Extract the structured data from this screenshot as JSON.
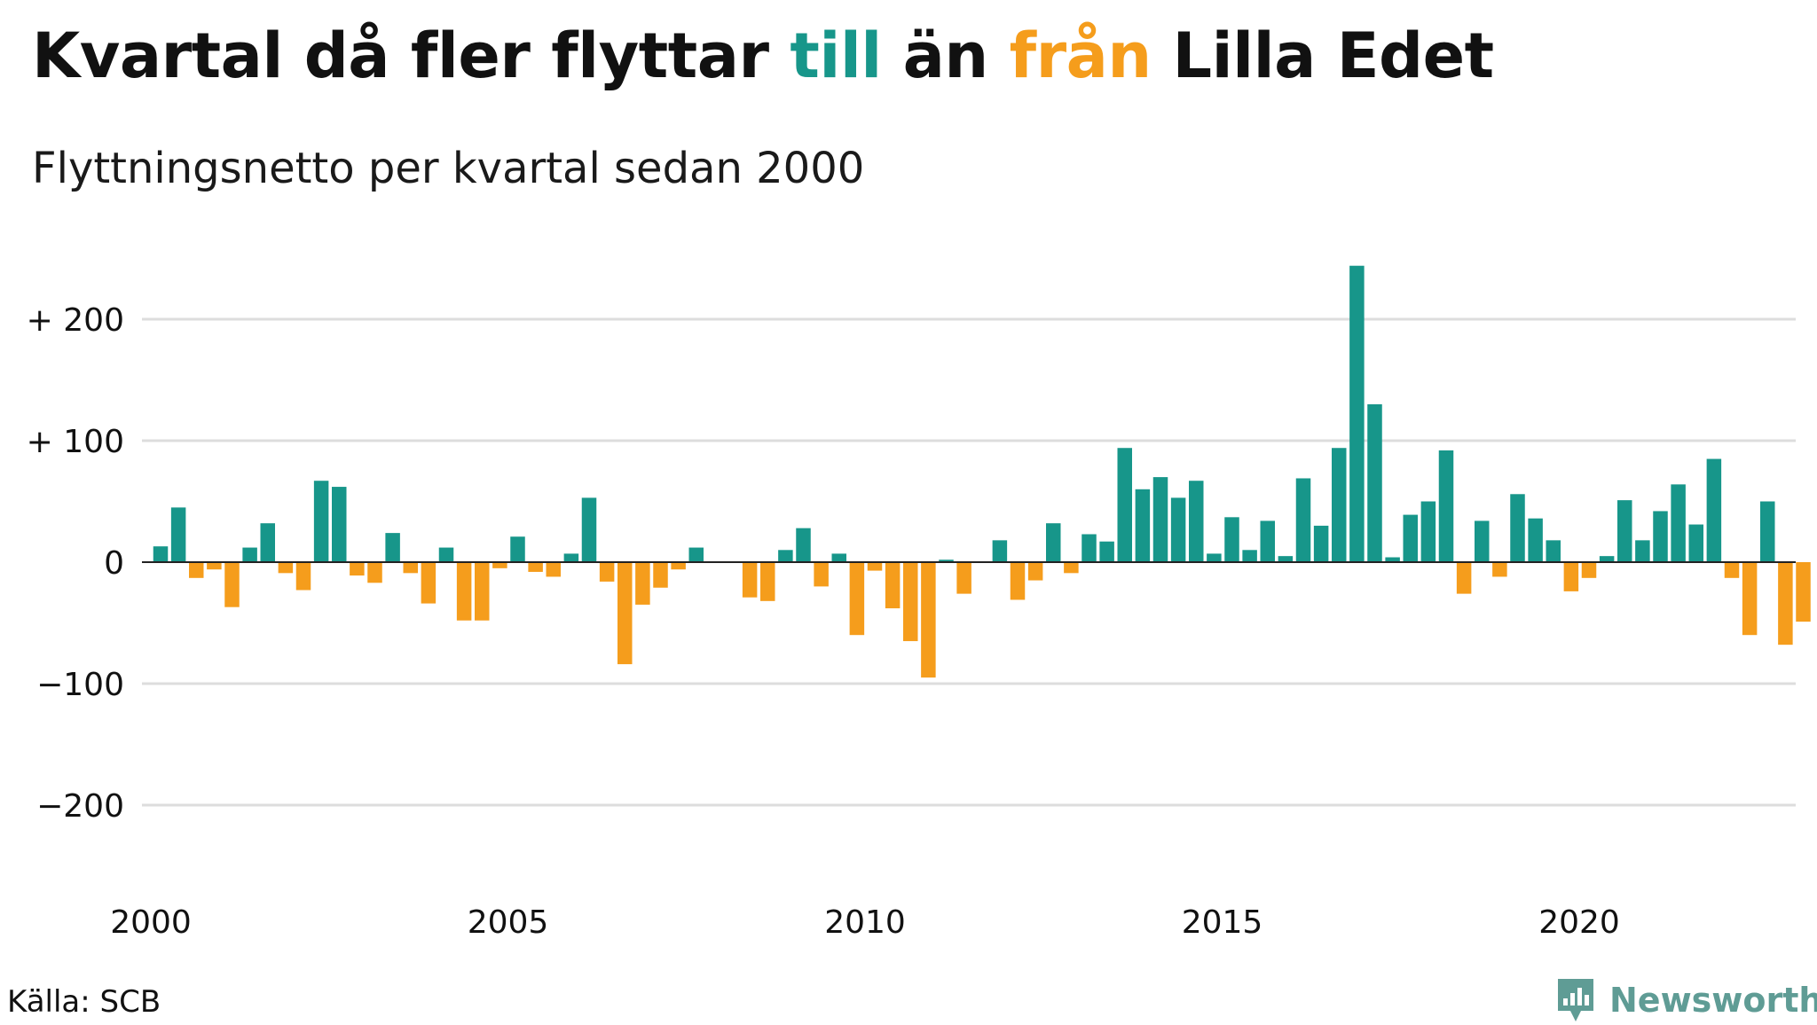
{
  "header": {
    "title_part1": "Kvartal då fler flyttar ",
    "title_till": "till",
    "title_part2": " än ",
    "title_fran": "från",
    "title_part3": " Lilla Edet",
    "subtitle": "Flyttningsnetto per kvartal sedan 2000"
  },
  "footer": {
    "source": "Källa: SCB",
    "brand": "Newsworthy"
  },
  "colors": {
    "positive": "#17968a",
    "negative": "#f59d1c",
    "grid": "#dddddd",
    "zero_line": "#222222",
    "brand": "#5f9c95"
  },
  "icons": {
    "brand_logo": "newsworthy-logo-icon"
  },
  "chart_data": {
    "type": "bar",
    "title": "Kvartal då fler flyttar till än från Lilla Edet",
    "subtitle": "Flyttningsnetto per kvartal sedan 2000",
    "xlabel": "",
    "ylabel": "",
    "ylim": [
      -270,
      250
    ],
    "y_ticks": [
      {
        "value": 200,
        "label": "+ 200"
      },
      {
        "value": 100,
        "label": "+ 100"
      },
      {
        "value": 0,
        "label": "0"
      },
      {
        "value": -100,
        "label": "−100"
      },
      {
        "value": -200,
        "label": "−200"
      }
    ],
    "x_ticks": [
      {
        "value": 2000,
        "label": "2000"
      },
      {
        "value": 2005,
        "label": "2005"
      },
      {
        "value": 2010,
        "label": "2010"
      },
      {
        "value": 2015,
        "label": "2015"
      },
      {
        "value": 2020,
        "label": "2020"
      }
    ],
    "grid": true,
    "legend": "none",
    "start_quarter": "2000 Q1",
    "frequency": "quarterly",
    "values": [
      13,
      45,
      -13,
      -6,
      -37,
      12,
      32,
      -9,
      -23,
      67,
      62,
      -11,
      -17,
      24,
      -9,
      -34,
      12,
      -48,
      -48,
      -5,
      21,
      -8,
      -12,
      7,
      53,
      -16,
      -84,
      -35,
      -21,
      -6,
      12,
      0,
      0,
      -29,
      -32,
      10,
      28,
      -20,
      7,
      -60,
      -7,
      -38,
      -65,
      -95,
      2,
      -26,
      0,
      18,
      -31,
      -15,
      32,
      -9,
      23,
      17,
      94,
      60,
      70,
      53,
      67,
      7,
      37,
      10,
      34,
      5,
      69,
      30,
      94,
      244,
      130,
      4,
      39,
      50,
      92,
      -26,
      34,
      -12,
      56,
      36,
      18,
      -24,
      -13,
      5,
      51,
      18,
      42,
      64,
      31,
      85,
      -13,
      -60,
      50,
      -68,
      -49
    ]
  }
}
